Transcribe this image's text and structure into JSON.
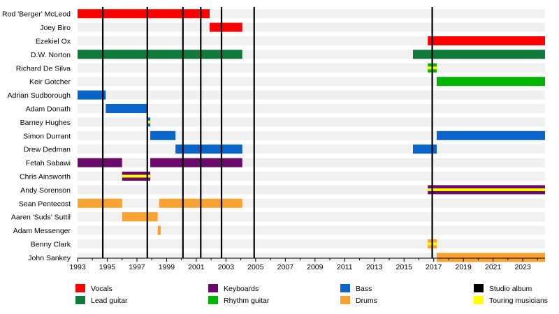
{
  "chart_data": {
    "type": "timeline",
    "x_range": [
      1993,
      2024.5
    ],
    "x_ticks": [
      1993,
      1995,
      1997,
      1999,
      2001,
      2003,
      2005,
      2007,
      2009,
      2011,
      2013,
      2015,
      2017,
      2019,
      2021,
      2023
    ],
    "studio_albums": [
      1994.7,
      1997.7,
      2000.1,
      2001.3,
      2002.7,
      2004.9,
      2016.9
    ],
    "members": [
      {
        "name": "Rod 'Berger' McLeod",
        "periods": [
          {
            "start": 1993.0,
            "end": 2001.9,
            "role": "vocals"
          }
        ]
      },
      {
        "name": "Joey Biro",
        "periods": [
          {
            "start": 2001.9,
            "end": 2004.1,
            "role": "vocals"
          }
        ]
      },
      {
        "name": "Ezekiel Ox",
        "periods": [
          {
            "start": 2016.6,
            "end": 2024.5,
            "role": "vocals"
          }
        ]
      },
      {
        "name": "D.W. Norton",
        "periods": [
          {
            "start": 1993.0,
            "end": 2004.1,
            "role": "lead_guitar"
          },
          {
            "start": 2015.6,
            "end": 2024.5,
            "role": "lead_guitar"
          }
        ]
      },
      {
        "name": "Richard De Silva",
        "periods": [
          {
            "start": 2016.6,
            "end": 2017.2,
            "role": "rhythm_guitar",
            "touring": true
          }
        ]
      },
      {
        "name": "Keir Gotcher",
        "periods": [
          {
            "start": 2017.2,
            "end": 2024.5,
            "role": "rhythm_guitar"
          }
        ]
      },
      {
        "name": "Adrian Sudborough",
        "periods": [
          {
            "start": 1993.0,
            "end": 1994.9,
            "role": "bass"
          }
        ]
      },
      {
        "name": "Adam Donath",
        "periods": [
          {
            "start": 1994.9,
            "end": 1997.7,
            "role": "bass"
          }
        ]
      },
      {
        "name": "Barney Hughes",
        "periods": [
          {
            "start": 1997.7,
            "end": 1997.9,
            "role": "bass",
            "touring": true
          }
        ]
      },
      {
        "name": "Simon Durrant",
        "periods": [
          {
            "start": 1997.9,
            "end": 1999.6,
            "role": "bass"
          },
          {
            "start": 2017.2,
            "end": 2024.5,
            "role": "bass"
          }
        ]
      },
      {
        "name": "Drew Dedman",
        "periods": [
          {
            "start": 1999.6,
            "end": 2004.1,
            "role": "bass"
          },
          {
            "start": 2015.6,
            "end": 2017.2,
            "role": "bass"
          }
        ]
      },
      {
        "name": "Fetah Sabawi",
        "periods": [
          {
            "start": 1993.0,
            "end": 1996.0,
            "role": "keyboards"
          },
          {
            "start": 1997.9,
            "end": 2004.1,
            "role": "keyboards"
          }
        ]
      },
      {
        "name": "Chris Ainsworth",
        "periods": [
          {
            "start": 1996.0,
            "end": 1997.9,
            "role": "keyboards",
            "touring": true
          }
        ]
      },
      {
        "name": "Andy Sorenson",
        "periods": [
          {
            "start": 2016.6,
            "end": 2024.5,
            "role": "keyboards",
            "touring": true
          }
        ]
      },
      {
        "name": "Sean Pentecost",
        "periods": [
          {
            "start": 1993.0,
            "end": 1996.0,
            "role": "drums"
          },
          {
            "start": 1998.5,
            "end": 2004.1,
            "role": "drums"
          }
        ]
      },
      {
        "name": "Aaren 'Suds' Suttil",
        "periods": [
          {
            "start": 1996.0,
            "end": 1998.4,
            "role": "drums"
          }
        ]
      },
      {
        "name": "Adam Messenger",
        "periods": [
          {
            "start": 1998.4,
            "end": 1998.6,
            "role": "drums"
          }
        ]
      },
      {
        "name": "Benny Clark",
        "periods": [
          {
            "start": 2016.6,
            "end": 2017.2,
            "role": "drums",
            "touring": true
          }
        ]
      },
      {
        "name": "John Sankey",
        "periods": [
          {
            "start": 2017.2,
            "end": 2024.5,
            "role": "drums"
          }
        ]
      }
    ],
    "legend": [
      {
        "key": "vocals",
        "label": "Vocals",
        "color": "#ff0000"
      },
      {
        "key": "lead_guitar",
        "label": "Lead guitar",
        "color": "#117a3a"
      },
      {
        "key": "keyboards",
        "label": "Keyboards",
        "color": "#6a0a6a"
      },
      {
        "key": "rhythm_guitar",
        "label": "Rhythm guitar",
        "color": "#00b300"
      },
      {
        "key": "bass",
        "label": "Bass",
        "color": "#0a64c8"
      },
      {
        "key": "drums",
        "label": "Drums",
        "color": "#f7a233"
      },
      {
        "key": "studio_album",
        "label": "Studio album",
        "color": "#000000"
      },
      {
        "key": "touring",
        "label": "Touring musicians",
        "color": "#ffff00"
      }
    ],
    "colors": {
      "stripe": "#f0f0f0",
      "album_line": "#000000",
      "touring_stripe": "#ffff00"
    }
  }
}
